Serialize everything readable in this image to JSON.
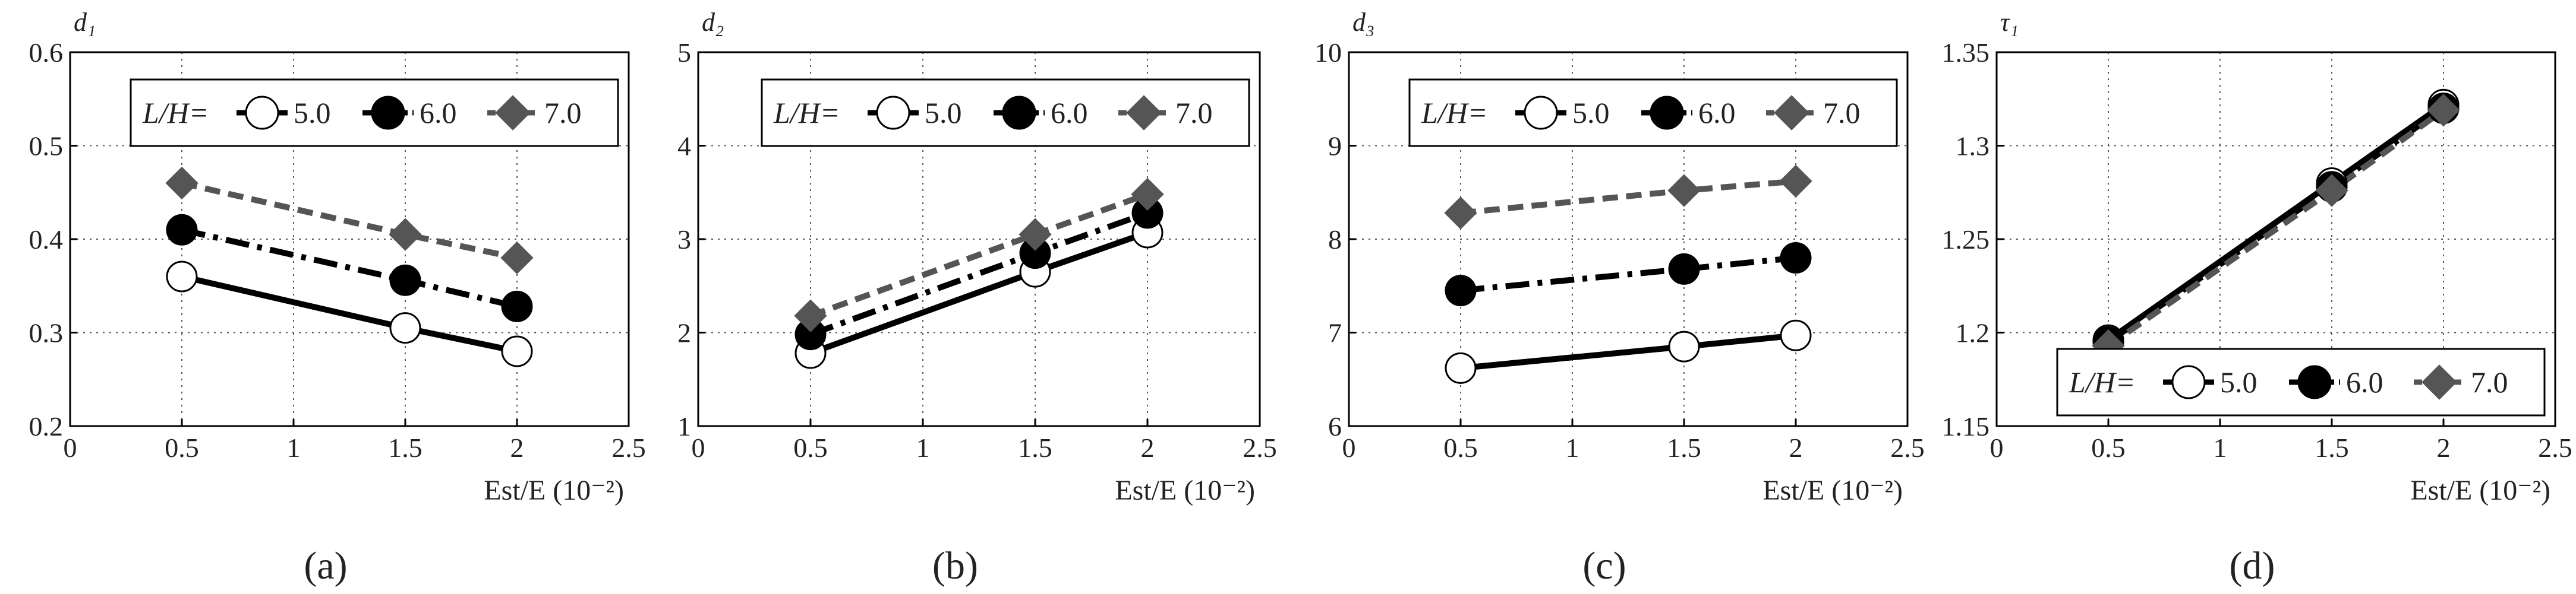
{
  "chart_data": [
    {
      "type": "line",
      "panel_label": "(a)",
      "ylabel": "d₁",
      "xlabel": "Est/E (10⁻²)",
      "xlim": [
        0,
        2.5
      ],
      "ylim": [
        0.2,
        0.6
      ],
      "xticks": [
        0,
        0.5,
        1,
        1.5,
        2,
        2.5
      ],
      "yticks": [
        0.2,
        0.3,
        0.4,
        0.5,
        0.6
      ],
      "grid": true,
      "legend": {
        "position": "top-right",
        "prefix": "L/H="
      },
      "series": [
        {
          "name": "5.0",
          "x": [
            0.5,
            1.5,
            2.0
          ],
          "y": [
            0.36,
            0.305,
            0.28
          ]
        },
        {
          "name": "6.0",
          "x": [
            0.5,
            1.5,
            2.0
          ],
          "y": [
            0.41,
            0.356,
            0.328
          ]
        },
        {
          "name": "7.0",
          "x": [
            0.5,
            1.5,
            2.0
          ],
          "y": [
            0.46,
            0.405,
            0.38
          ]
        }
      ]
    },
    {
      "type": "line",
      "panel_label": "(b)",
      "ylabel": "d₂",
      "xlabel": "Est/E (10⁻²)",
      "xlim": [
        0,
        2.5
      ],
      "ylim": [
        1,
        5
      ],
      "xticks": [
        0,
        0.5,
        1,
        1.5,
        2,
        2.5
      ],
      "yticks": [
        1,
        2,
        3,
        4,
        5
      ],
      "grid": true,
      "legend": {
        "position": "top-right",
        "prefix": "L/H="
      },
      "series": [
        {
          "name": "5.0",
          "x": [
            0.5,
            1.5,
            2.0
          ],
          "y": [
            1.78,
            2.65,
            3.07
          ]
        },
        {
          "name": "6.0",
          "x": [
            0.5,
            1.5,
            2.0
          ],
          "y": [
            1.98,
            2.85,
            3.28
          ]
        },
        {
          "name": "7.0",
          "x": [
            0.5,
            1.5,
            2.0
          ],
          "y": [
            2.18,
            3.05,
            3.48
          ]
        }
      ]
    },
    {
      "type": "line",
      "panel_label": "(c)",
      "ylabel": "d₃",
      "xlabel": "Est/E (10⁻²)",
      "xlim": [
        0,
        2.5
      ],
      "ylim": [
        6,
        10
      ],
      "xticks": [
        0,
        0.5,
        1,
        1.5,
        2,
        2.5
      ],
      "yticks": [
        6,
        7,
        8,
        9,
        10
      ],
      "grid": true,
      "legend": {
        "position": "top-right",
        "prefix": "L/H="
      },
      "series": [
        {
          "name": "5.0",
          "x": [
            0.5,
            1.5,
            2.0
          ],
          "y": [
            6.62,
            6.85,
            6.97
          ]
        },
        {
          "name": "6.0",
          "x": [
            0.5,
            1.5,
            2.0
          ],
          "y": [
            7.45,
            7.68,
            7.8
          ]
        },
        {
          "name": "7.0",
          "x": [
            0.5,
            1.5,
            2.0
          ],
          "y": [
            8.28,
            8.52,
            8.62
          ]
        }
      ]
    },
    {
      "type": "line",
      "panel_label": "(d)",
      "ylabel": "τ₁",
      "xlabel": "Est/E (10⁻²)",
      "xlim": [
        0,
        2.5
      ],
      "ylim": [
        1.15,
        1.35
      ],
      "xticks": [
        0,
        0.5,
        1,
        1.5,
        2,
        2.5
      ],
      "yticks": [
        1.15,
        1.2,
        1.25,
        1.3,
        1.35
      ],
      "grid": true,
      "legend": {
        "position": "bottom-right",
        "prefix": "L/H="
      },
      "series": [
        {
          "name": "5.0",
          "x": [
            0.5,
            1.5,
            2.0
          ],
          "y": [
            1.196,
            1.28,
            1.322
          ]
        },
        {
          "name": "6.0",
          "x": [
            0.5,
            1.5,
            2.0
          ],
          "y": [
            1.195,
            1.278,
            1.32
          ]
        },
        {
          "name": "7.0",
          "x": [
            0.5,
            1.5,
            2.0
          ],
          "y": [
            1.193,
            1.276,
            1.319
          ]
        }
      ]
    }
  ]
}
